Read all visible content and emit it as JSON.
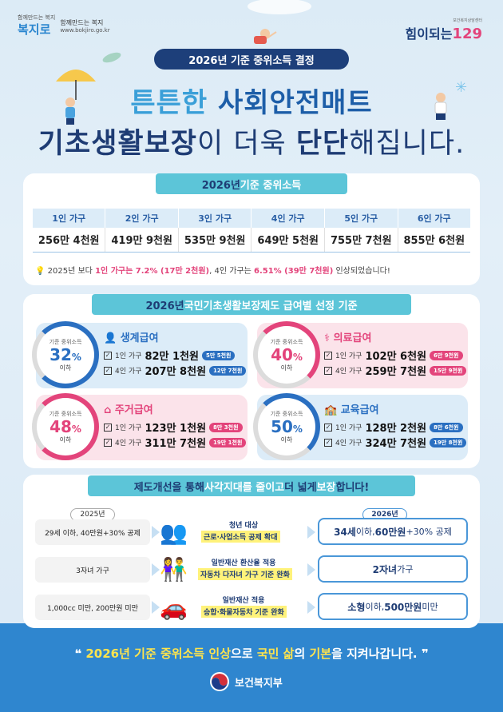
{
  "header": {
    "logo_left_small": "함께만드는 복지",
    "logo_left_name": "복지로",
    "logo_left_tagline": "함께만드는 복지",
    "logo_left_url": "www.bokjiro.go.kr",
    "logo_right_small": "보건복지상담센터",
    "logo_right_text": "힘이되는",
    "logo_right_num": "129",
    "pill": "2026년 기준 중위소득 결정",
    "headline1_a": "튼튼한 ",
    "headline1_b": "사회안전매트",
    "headline2_a": "기초생활보장",
    "headline2_b": "이 더욱 ",
    "headline2_c": "단단",
    "headline2_d": "해집니다."
  },
  "median": {
    "title_a": "2026년 ",
    "title_b": "기준 중위소득",
    "headers": [
      "1인 가구",
      "2인 가구",
      "3인 가구",
      "4인 가구",
      "5인 가구",
      "6인 가구"
    ],
    "values": [
      "256만 4천원",
      "419만 9천원",
      "535만 9천원",
      "649만 5천원",
      "755만 7천원",
      "855만 6천원"
    ],
    "note_a": "2025년 보다 ",
    "note_b": "1인 가구는 7.2% (17만 2천원)",
    "note_c": ", 4인 가구는 ",
    "note_d": "6.51% (39만 7천원)",
    "note_e": " 인상되었습니다!"
  },
  "benefits": {
    "title_a": "2026년 ",
    "title_b": "국민기초생활보장제도 급여별 선정 기준",
    "circle_top": "기준 중위소득",
    "circle_bottom": "이하",
    "items": [
      {
        "name": "생계급여",
        "pct": "32",
        "row1_label": "1인 가구",
        "row1_amt": "82만 1천원",
        "row1_tag": "5만 5천원",
        "row2_label": "4인 가구",
        "row2_amt": "207만 8천원",
        "row2_tag": "12만 7천원"
      },
      {
        "name": "의료급여",
        "pct": "40",
        "row1_label": "1인 가구",
        "row1_amt": "102만 6천원",
        "row1_tag": "6만 9천원",
        "row2_label": "4인 가구",
        "row2_amt": "259만 7천원",
        "row2_tag": "15만 9천원"
      },
      {
        "name": "주거급여",
        "pct": "48",
        "row1_label": "1인 가구",
        "row1_amt": "123만 1천원",
        "row1_tag": "8만 3천원",
        "row2_label": "4인 가구",
        "row2_amt": "311만 7천원",
        "row2_tag": "19만 1천원"
      },
      {
        "name": "교육급여",
        "pct": "50",
        "row1_label": "1인 가구",
        "row1_amt": "128만 2천원",
        "row1_tag": "8만 6천원",
        "row2_label": "4인 가구",
        "row2_amt": "324만 7천원",
        "row2_tag": "19만 8천원"
      }
    ],
    "percent_sign": "%",
    "colors": {
      "living": "#2a6fc1",
      "medical": "#e3447b",
      "housing": "#e3447b",
      "education": "#2a6fc1"
    }
  },
  "reform": {
    "title_a": "제도개선을 통해 ",
    "title_b": "사각지대를 줄이고",
    "title_c": " 더 넓게 ",
    "title_d": "보장",
    "title_e": "합니다!",
    "year_old": "2025년",
    "year_new": "2026년",
    "rows": [
      {
        "old": "29세 이하, 40만원+30% 공제",
        "mid_title": "청년 대상",
        "mid_sub": "근로·사업소득 공제 확대",
        "new_a": "34세",
        "new_b": " 이하, ",
        "new_c": "60만원",
        "new_d": "+30% 공제"
      },
      {
        "old": "3자녀 가구",
        "mid_title": "일반재산 환산율 적용",
        "mid_sub": "자동차 다자녀 가구 기준 완화",
        "new_a": "2자녀",
        "new_b": " 가구",
        "new_c": "",
        "new_d": ""
      },
      {
        "old": "1,000cc 미만, 200만원 미만",
        "mid_title": "일반재산 적용",
        "mid_sub": "승합·화물자동차 기준 완화",
        "new_a": "소형",
        "new_b": " 이하, ",
        "new_c": "500만원",
        "new_d": " 미만"
      }
    ]
  },
  "footer": {
    "text_a": "2026년 기준 중위소득 인상",
    "text_b": "으로 ",
    "text_c": "국민 삶",
    "text_d": "의 ",
    "text_e": "기본",
    "text_f": "을 지켜나갑니다.",
    "ministry": "보건복지부"
  }
}
